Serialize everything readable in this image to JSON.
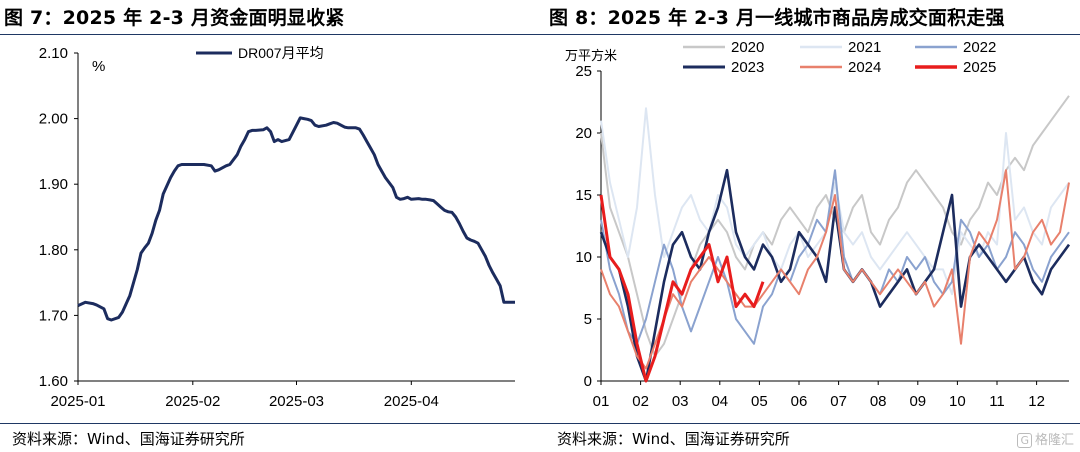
{
  "left": {
    "title": "图 7：2025 年 2-3 月资金面明显收紧",
    "source": "资料来源：Wind、国海证券研究所"
  },
  "right": {
    "title": "图 8：2025 年 2-3 月一线城市商品房成交面积走强",
    "source": "资料来源：Wind、国海证券研究所"
  },
  "watermark": {
    "glyph": "G",
    "text": "格隆汇"
  },
  "chart_data": [
    {
      "type": "line",
      "unit_label": "%",
      "ylim": [
        1.6,
        2.1
      ],
      "yticks": [
        "1.60",
        "1.70",
        "1.80",
        "1.90",
        "2.00",
        "2.10"
      ],
      "xticks": [
        {
          "label": "2025-01",
          "x": 1
        },
        {
          "label": "2025-02",
          "x": 32
        },
        {
          "label": "2025-03",
          "x": 60
        },
        {
          "label": "2025-04",
          "x": 91
        }
      ],
      "xlim": [
        1,
        119
      ],
      "legend_position": "top-center",
      "series": [
        {
          "name": "DR007月平均",
          "color": "#1c2c5e",
          "x": [
            1,
            3,
            5,
            6,
            8,
            9,
            10,
            12,
            13,
            15,
            17,
            18,
            19,
            20,
            21,
            22,
            23,
            24,
            26,
            27,
            28,
            29,
            30,
            31,
            33,
            35,
            37,
            38,
            39,
            40,
            41,
            42,
            44,
            45,
            46,
            47,
            48,
            49,
            51,
            52,
            53,
            54,
            55,
            56,
            58,
            60,
            61,
            62,
            63,
            64,
            65,
            66,
            68,
            69,
            70,
            71,
            73,
            74,
            75,
            76,
            77,
            78,
            79,
            80,
            81,
            82,
            83,
            84,
            86,
            87,
            88,
            89,
            90,
            91,
            93,
            94,
            95,
            96,
            97,
            98,
            99,
            100,
            101,
            102,
            103,
            104,
            105,
            106,
            107,
            108,
            109,
            110,
            111,
            112,
            113,
            114,
            115,
            116,
            117,
            118,
            119
          ],
          "values": [
            1.715,
            1.72,
            1.718,
            1.716,
            1.71,
            1.695,
            1.693,
            1.697,
            1.705,
            1.73,
            1.77,
            1.795,
            1.803,
            1.81,
            1.825,
            1.845,
            1.86,
            1.885,
            1.91,
            1.92,
            1.928,
            1.93,
            1.93,
            1.93,
            1.93,
            1.93,
            1.928,
            1.92,
            1.922,
            1.925,
            1.928,
            1.93,
            1.945,
            1.958,
            1.968,
            1.98,
            1.982,
            1.982,
            1.983,
            1.986,
            1.98,
            1.965,
            1.968,
            1.965,
            1.968,
            1.99,
            2.001,
            2.0,
            1.999,
            1.997,
            1.99,
            1.988,
            1.99,
            1.992,
            1.994,
            1.993,
            1.987,
            1.986,
            1.986,
            1.986,
            1.984,
            1.975,
            1.965,
            1.955,
            1.945,
            1.93,
            1.92,
            1.91,
            1.895,
            1.88,
            1.877,
            1.878,
            1.88,
            1.877,
            1.878,
            1.877,
            1.877,
            1.876,
            1.875,
            1.87,
            1.865,
            1.86,
            1.858,
            1.857,
            1.85,
            1.84,
            1.828,
            1.818,
            1.815,
            1.813,
            1.81,
            1.8,
            1.79,
            1.776,
            1.765,
            1.755,
            1.745,
            1.72,
            1.72,
            1.72,
            1.72
          ]
        }
      ]
    },
    {
      "type": "line",
      "unit_label": "万平方米",
      "ylim": [
        0,
        25
      ],
      "yticks": [
        "0",
        "5",
        "10",
        "15",
        "20",
        "25"
      ],
      "xlim": [
        1,
        53
      ],
      "xticks": [
        {
          "label": "01",
          "x": 1
        },
        {
          "label": "02",
          "x": 5.4
        },
        {
          "label": "03",
          "x": 9.8
        },
        {
          "label": "04",
          "x": 14.2
        },
        {
          "label": "05",
          "x": 18.6
        },
        {
          "label": "06",
          "x": 23
        },
        {
          "label": "07",
          "x": 27.4
        },
        {
          "label": "08",
          "x": 31.8
        },
        {
          "label": "09",
          "x": 36.2
        },
        {
          "label": "10",
          "x": 40.6
        },
        {
          "label": "11",
          "x": 45
        },
        {
          "label": "12",
          "x": 49.4
        }
      ],
      "legend_position": "top",
      "series": [
        {
          "name": "2020",
          "color": "#c8c8c8",
          "width": 2,
          "values": [
            20,
            14,
            12,
            10,
            7,
            4,
            2,
            3,
            5,
            7,
            9,
            11,
            12,
            13,
            12,
            10,
            9,
            11,
            12,
            11,
            13,
            14,
            13,
            12,
            14,
            15,
            13,
            12,
            14,
            15,
            12,
            11,
            13,
            14,
            16,
            17,
            16,
            15,
            14,
            12,
            11,
            13,
            14,
            16,
            15,
            17,
            18,
            17,
            19,
            20,
            21,
            22,
            23
          ]
        },
        {
          "name": "2021",
          "color": "#dde6f2",
          "width": 2,
          "values": [
            21,
            16,
            13,
            10,
            14,
            22,
            15,
            10,
            12,
            14,
            15,
            13,
            12,
            15,
            14,
            11,
            10,
            11,
            12,
            10,
            9,
            11,
            12,
            10,
            11,
            12,
            16,
            12,
            11,
            12,
            10,
            9,
            10,
            11,
            12,
            11,
            10,
            9,
            9,
            7,
            12,
            11,
            10,
            12,
            11,
            20,
            13,
            14,
            12,
            11,
            14,
            15,
            16
          ]
        },
        {
          "name": "2022",
          "color": "#8aa2cf",
          "width": 2,
          "values": [
            13,
            9,
            7,
            4,
            3,
            5,
            8,
            11,
            9,
            6,
            4,
            6,
            8,
            10,
            8,
            5,
            4,
            3,
            6,
            7,
            9,
            8,
            10,
            11,
            13,
            12,
            17,
            10,
            8,
            9,
            8,
            7,
            9,
            8,
            10,
            9,
            10,
            8,
            7,
            8,
            13,
            12,
            10,
            11,
            9,
            10,
            12,
            11,
            9,
            8,
            10,
            11,
            12
          ]
        },
        {
          "name": "2023",
          "color": "#1c2c5e",
          "width": 2.6,
          "values": [
            12,
            10,
            9,
            6,
            2,
            0,
            4,
            8,
            11,
            12,
            10,
            9,
            12,
            14,
            17,
            12,
            10,
            9,
            11,
            10,
            8,
            9,
            12,
            11,
            10,
            8,
            14,
            9,
            8,
            9,
            8,
            6,
            7,
            8,
            9,
            7,
            8,
            9,
            12,
            15,
            6,
            10,
            11,
            10,
            9,
            8,
            9,
            10,
            8,
            7,
            9,
            10,
            11
          ]
        },
        {
          "name": "2024",
          "color": "#e8806c",
          "width": 2,
          "values": [
            9,
            7,
            6,
            4,
            2,
            1,
            3,
            5,
            7,
            6,
            8,
            9,
            10,
            9,
            8,
            7,
            6,
            6,
            7,
            8,
            9,
            8,
            7,
            9,
            10,
            12,
            15,
            9,
            8,
            9,
            8,
            7,
            8,
            9,
            8,
            7,
            8,
            6,
            7,
            9,
            3,
            10,
            12,
            11,
            13,
            17,
            9,
            10,
            12,
            13,
            11,
            12,
            16
          ]
        },
        {
          "name": "2025",
          "color": "#e81d1d",
          "width": 3,
          "values": [
            15,
            10,
            9,
            7,
            3,
            0,
            2,
            5,
            8,
            7,
            9,
            10,
            11,
            8,
            10,
            6,
            7,
            6,
            8
          ]
        }
      ]
    }
  ]
}
